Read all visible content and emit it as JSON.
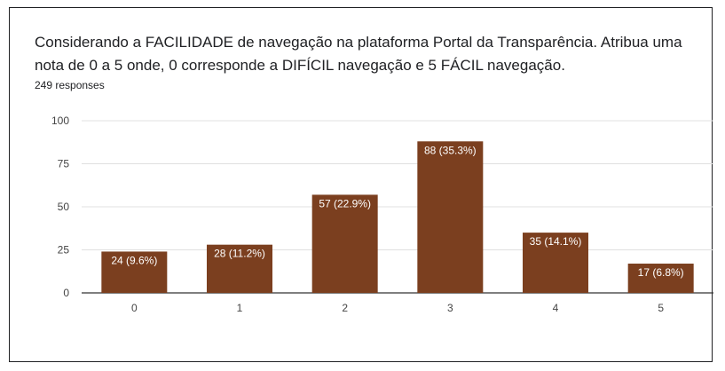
{
  "question": {
    "title": "Considerando a FACILIDADE de navegação na plataforma Portal da Transparência. Atribua uma nota de 0 a 5 onde, 0 corresponde a DIFÍCIL navegação e 5 FÁCIL navegação.",
    "responses": "249 responses"
  },
  "colors": {
    "bar": "#7b3f1f",
    "grid": "#e0e0e0",
    "axis": "#333333",
    "label_text": "#ffffff"
  },
  "chart_data": {
    "type": "bar",
    "categories": [
      "0",
      "1",
      "2",
      "3",
      "4",
      "5"
    ],
    "values": [
      24,
      28,
      57,
      88,
      35,
      17
    ],
    "data_labels": [
      "24 (9.6%)",
      "28 (11.2%)",
      "57 (22.9%)",
      "88 (35.3%)",
      "35 (14.1%)",
      "17 (6.8%)"
    ],
    "yticks": [
      "0",
      "25",
      "50",
      "75",
      "100"
    ],
    "ylim": [
      0,
      100
    ],
    "grid": true,
    "legend": "none"
  }
}
